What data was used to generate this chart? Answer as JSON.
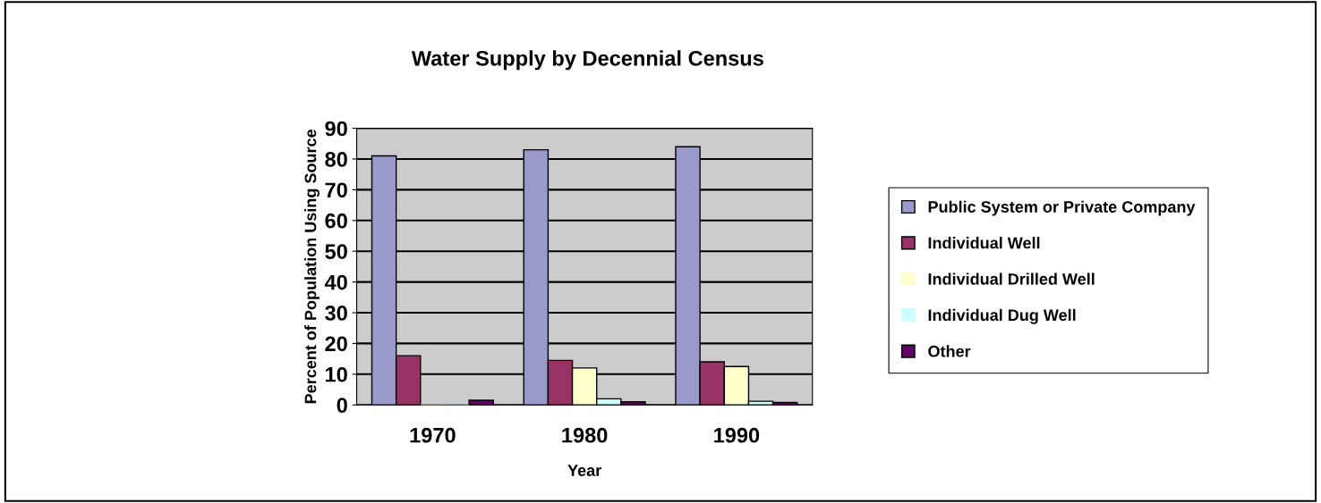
{
  "chart_data": {
    "type": "bar",
    "title": "Water Supply by Decennial Census",
    "xlabel": "Year",
    "ylabel": "Percent of Population Using Source",
    "categories": [
      "1970",
      "1980",
      "1990"
    ],
    "series": [
      {
        "name": "Public System or Private Company",
        "color": "#9999cc",
        "values": [
          81,
          83,
          84
        ]
      },
      {
        "name": "Individual Well",
        "color": "#993366",
        "values": [
          16,
          14.5,
          14
        ]
      },
      {
        "name": "Individual Drilled Well",
        "color": "#ffffcc",
        "values": [
          0,
          12,
          12.5
        ]
      },
      {
        "name": "Individual Dug Well",
        "color": "#ccffff",
        "values": [
          0,
          2,
          1.2
        ]
      },
      {
        "name": "Other",
        "color": "#660066",
        "values": [
          1.5,
          1,
          0.8
        ]
      }
    ],
    "ylim": [
      0,
      90
    ],
    "yticks": [
      0,
      10,
      20,
      30,
      40,
      50,
      60,
      70,
      80,
      90
    ],
    "grid": "y",
    "legend": "right"
  }
}
